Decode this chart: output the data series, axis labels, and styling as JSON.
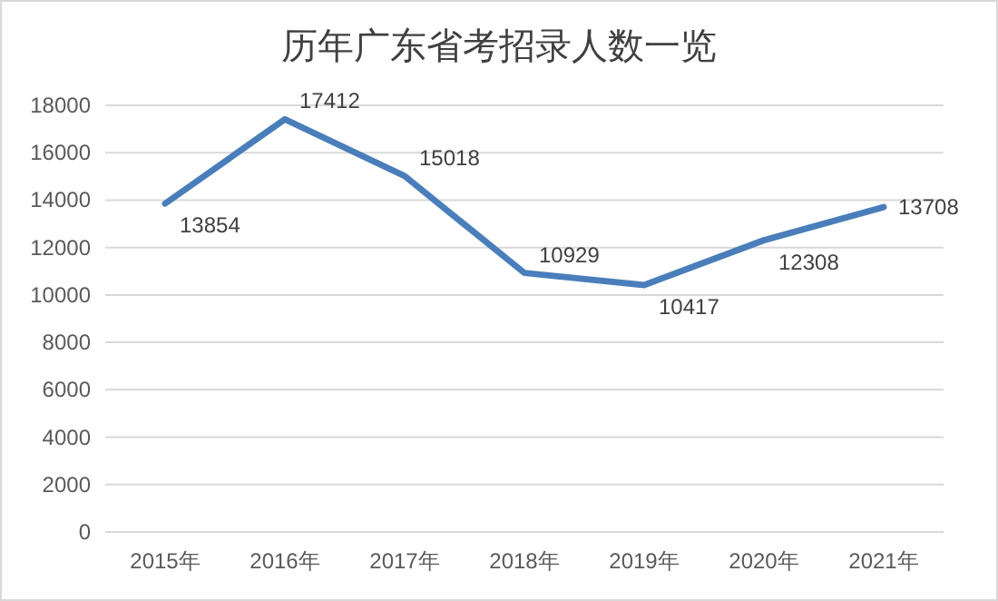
{
  "chart_data": {
    "type": "line",
    "title": "历年广东省考招录人数一览",
    "categories": [
      "2015年",
      "2016年",
      "2017年",
      "2018年",
      "2019年",
      "2020年",
      "2021年"
    ],
    "series": [
      {
        "color": "#4a7ebb",
        "values": [
          13854,
          17412,
          15018,
          10929,
          10417,
          12308,
          13708
        ]
      }
    ],
    "ylim": [
      0,
      18000
    ],
    "yticks": [
      0,
      2000,
      4000,
      6000,
      8000,
      10000,
      12000,
      14000,
      16000,
      18000
    ],
    "grid": "y",
    "data_labels": true,
    "marker": "none",
    "line_style": "solid"
  }
}
